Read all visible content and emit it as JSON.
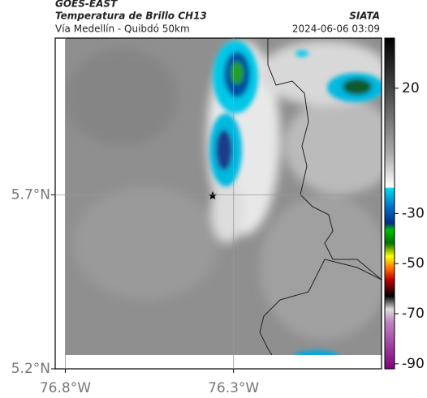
{
  "header": {
    "source": "GOES-EAST",
    "title": "Temperatura de Brillo CH13",
    "subtitle": "Vía Medellín - Quibdó 50km",
    "agency": "SIATA",
    "datetime": "2024-06-06 03:09"
  },
  "map": {
    "xlim": [
      -76.83,
      -75.86
    ],
    "ylim": [
      5.2,
      6.15
    ],
    "xticks": [
      {
        "value": -76.8,
        "label": "76.8°W"
      },
      {
        "value": -76.3,
        "label": "76.3°W"
      }
    ],
    "yticks": [
      {
        "value": 5.7,
        "label": "5.7°N"
      },
      {
        "value": 5.2,
        "label": "5.2°N"
      }
    ],
    "grid": true
  },
  "colorbar": {
    "lim": [
      -92,
      40
    ],
    "ticks": [
      20,
      -30,
      -50,
      -70,
      -90
    ]
  }
}
